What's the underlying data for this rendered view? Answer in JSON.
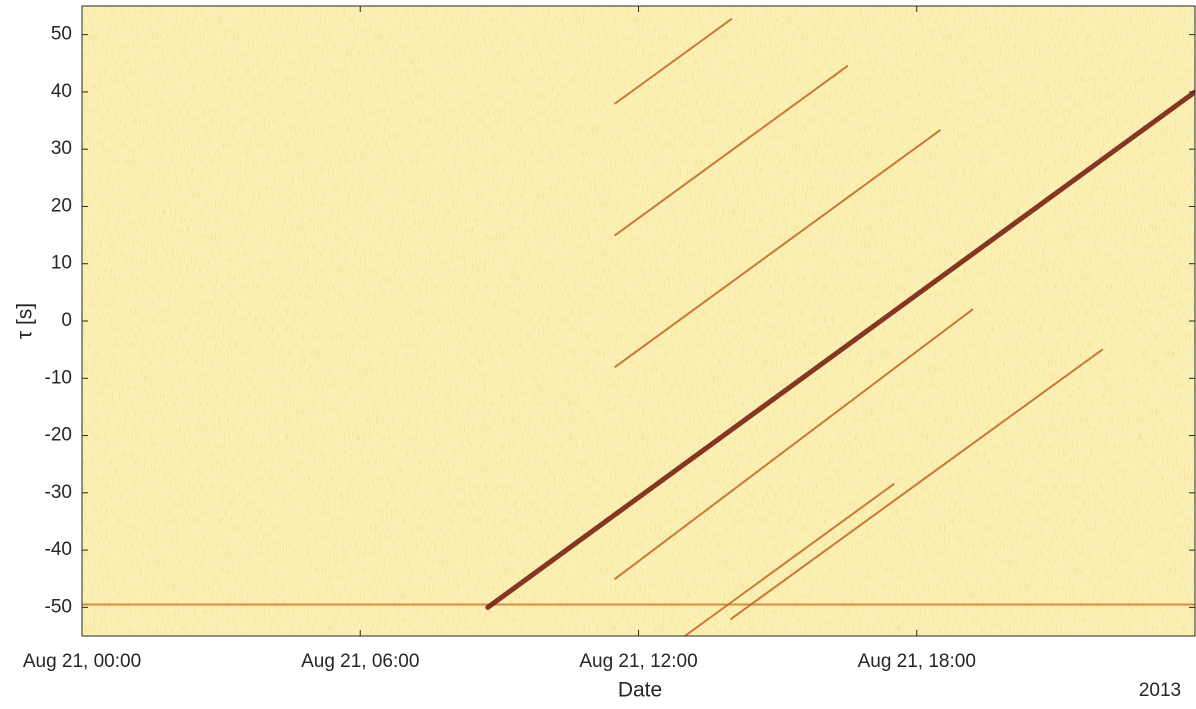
{
  "chart_data": {
    "type": "heatmap-traces",
    "xlabel": "Date",
    "ylabel": "τ [s]",
    "x_offset_text": "2013",
    "xlim": [
      0,
      24
    ],
    "xticks": [
      {
        "value": 0,
        "label": "Aug 21, 00:00"
      },
      {
        "value": 6,
        "label": "Aug 21, 06:00"
      },
      {
        "value": 12,
        "label": "Aug 21, 12:00"
      },
      {
        "value": 18,
        "label": "Aug 21, 18:00"
      }
    ],
    "ylim": [
      -55,
      55
    ],
    "yticks": [
      50,
      40,
      30,
      20,
      10,
      0,
      -10,
      -20,
      -30,
      -40,
      -50
    ],
    "grid": false,
    "background": "#fbf0b4",
    "series": [
      {
        "color": "#d27a2a",
        "width": 2,
        "x": [
          0,
          24
        ],
        "values": [
          -49.5,
          -49.5
        ]
      },
      {
        "color": "#c0651f",
        "width": 2,
        "x": [
          11.5,
          19.2
        ],
        "values": [
          -45,
          2
        ]
      },
      {
        "color": "#c0651f",
        "width": 2,
        "x": [
          11.5,
          18.5
        ],
        "values": [
          -8,
          33.3
        ]
      },
      {
        "color": "#c0651f",
        "width": 2,
        "x": [
          11.5,
          16.5
        ],
        "values": [
          15,
          44.5
        ]
      },
      {
        "color": "#c0651f",
        "width": 2,
        "x": [
          11.5,
          14
        ],
        "values": [
          38,
          52.7
        ]
      },
      {
        "color": "#c0651f",
        "width": 2,
        "x": [
          14,
          22
        ],
        "values": [
          -52,
          -5
        ]
      },
      {
        "color": "#c0651f",
        "width": 2,
        "x": [
          13,
          17.5
        ],
        "values": [
          -55,
          -28.5
        ]
      },
      {
        "color": "#6e1608",
        "width": 5,
        "x": [
          8.75,
          24
        ],
        "values": [
          -50,
          40
        ]
      }
    ]
  }
}
